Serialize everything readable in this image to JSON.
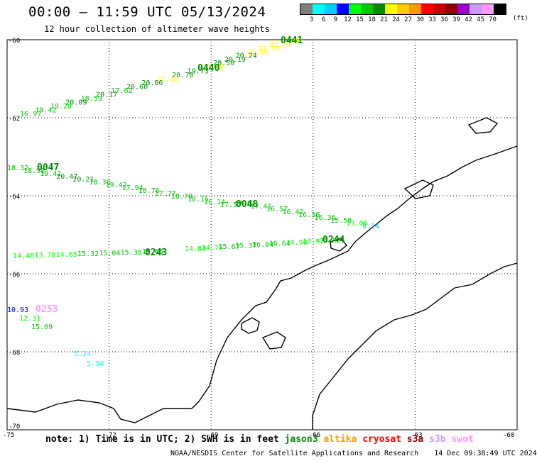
{
  "header": {
    "title": "00:00 – 11:59 UTC 05/13/2024",
    "subtitle": "12 hour collection of altimeter wave heights"
  },
  "legend": {
    "colors": [
      "#808080",
      "#00ffff",
      "#00d0ff",
      "#0000ff",
      "#00ff00",
      "#00c800",
      "#008c00",
      "#ffff00",
      "#ffcc00",
      "#ff9900",
      "#ff0000",
      "#c80000",
      "#8c0000",
      "#9900cc",
      "#cc99ff",
      "#ff99ff",
      "#000000"
    ],
    "labels": [
      "3",
      "6",
      "9",
      "12",
      "15",
      "18",
      "21",
      "24",
      "27",
      "30",
      "33",
      "36",
      "39",
      "42",
      "45",
      "70"
    ],
    "unit": "(ft)"
  },
  "axes": {
    "y_ticks": [
      "-60",
      "-62",
      "-64",
      "-66",
      "-68",
      "-70"
    ],
    "x_ticks": [
      "-75",
      "-72",
      "-69",
      "-66",
      "-63",
      "-60"
    ]
  },
  "tracks": [
    {
      "id": "0441",
      "color": "#008c00",
      "values": [
        {
          "v": "21.90",
          "c": "#ffff00"
        },
        {
          "v": "21.79",
          "c": "#ffff00"
        },
        {
          "v": "21.53",
          "c": "#ffff00"
        },
        {
          "v": "22.06",
          "c": "#ffff00"
        },
        {
          "v": "20.24",
          "c": "#008c00"
        },
        {
          "v": "20.19",
          "c": "#008c00"
        },
        {
          "v": "20.50",
          "c": "#008c00"
        }
      ]
    },
    {
      "id": "0440",
      "color": "#008c00",
      "values": [
        {
          "v": "21.09",
          "c": "#ffff00"
        },
        {
          "v": "19.73",
          "c": "#008c00"
        },
        {
          "v": "20.78",
          "c": "#008c00"
        },
        {
          "v": "21.38",
          "c": "#ffff00"
        },
        {
          "v": "20.86",
          "c": "#008c00"
        },
        {
          "v": "20.60",
          "c": "#008c00"
        },
        {
          "v": "17.62",
          "c": "#00c800"
        },
        {
          "v": "20.17",
          "c": "#008c00"
        },
        {
          "v": "18.59",
          "c": "#00c800"
        },
        {
          "v": "20.09",
          "c": "#008c00"
        },
        {
          "v": "19.20",
          "c": "#00c800"
        },
        {
          "v": "19.42",
          "c": "#00c800"
        },
        {
          "v": "16.97",
          "c": "#00c800"
        }
      ]
    },
    {
      "id": "0047",
      "color": "#008c00",
      "values": [
        {
          "v": "18.32",
          "c": "#00c800"
        },
        {
          "v": "18.98",
          "c": "#00c800"
        },
        {
          "v": "19.42",
          "c": "#00c800"
        },
        {
          "v": "20.47",
          "c": "#008c00"
        },
        {
          "v": "20.21",
          "c": "#008c00"
        },
        {
          "v": "18.38",
          "c": "#00c800"
        },
        {
          "v": "19.42",
          "c": "#00c800"
        },
        {
          "v": "17.94",
          "c": "#00c800"
        },
        {
          "v": "18.76",
          "c": "#00c800"
        },
        {
          "v": "17.77",
          "c": "#00c800"
        },
        {
          "v": "18.70",
          "c": "#00c800"
        },
        {
          "v": "18.15",
          "c": "#00c800"
        },
        {
          "v": "16.14",
          "c": "#00c800"
        },
        {
          "v": "17.57",
          "c": "#00c800"
        }
      ]
    },
    {
      "id": "0048",
      "color": "#008c00",
      "values": [
        {
          "v": "17.67",
          "c": "#00c800"
        },
        {
          "v": "17.41",
          "c": "#00c800"
        },
        {
          "v": "16.57",
          "c": "#00c800"
        },
        {
          "v": "16.42",
          "c": "#00c800"
        },
        {
          "v": "16.36",
          "c": "#00c800"
        },
        {
          "v": "16.36",
          "c": "#00c800"
        },
        {
          "v": "15.58",
          "c": "#00c800"
        },
        {
          "v": "13.06",
          "c": "#00ff00"
        },
        {
          "v": "8.14",
          "c": "#00d0ff"
        }
      ]
    },
    {
      "id": "0244",
      "color": "#008c00",
      "values": [
        {
          "v": "13.93",
          "c": "#00ff00"
        },
        {
          "v": "13.97",
          "c": "#00ff00"
        },
        {
          "v": "14.98",
          "c": "#00ff00"
        },
        {
          "v": "16.64",
          "c": "#00c800"
        },
        {
          "v": "16.04",
          "c": "#00c800"
        },
        {
          "v": "15.37",
          "c": "#00c800"
        },
        {
          "v": "15.67",
          "c": "#00c800"
        },
        {
          "v": "14.76",
          "c": "#00ff00"
        },
        {
          "v": "14.84",
          "c": "#00ff00"
        }
      ]
    },
    {
      "id": "0243",
      "color": "#008c00",
      "values": [
        {
          "v": "15.65",
          "c": "#00c800"
        },
        {
          "v": "15.38",
          "c": "#00c800"
        },
        {
          "v": "15.04",
          "c": "#00c800"
        },
        {
          "v": "15.32",
          "c": "#00c800"
        },
        {
          "v": "14.65",
          "c": "#00ff00"
        },
        {
          "v": "13.78",
          "c": "#00ff00"
        },
        {
          "v": "14.46",
          "c": "#00ff00"
        }
      ]
    },
    {
      "id": "0253",
      "color": "#ff99ff",
      "values": [
        {
          "v": "10.93",
          "c": "#0000ff"
        },
        {
          "v": "12.31",
          "c": "#00ff00"
        },
        {
          "v": "15.09",
          "c": "#00c800"
        }
      ]
    },
    {
      "id": "",
      "color": "#00ffff",
      "values": [
        {
          "v": "5.24",
          "c": "#00ffff"
        },
        {
          "v": "5.34",
          "c": "#00ffff"
        }
      ]
    }
  ],
  "note": {
    "prefix": "note: 1) Time is in UTC; 2) SWH is in feet",
    "missions": [
      {
        "name": "jason3",
        "color": "#008c00"
      },
      {
        "name": "altika",
        "color": "#ff9900"
      },
      {
        "name": "cryosat",
        "color": "#ff0000"
      },
      {
        "name": "s3a",
        "color": "#8c0000"
      },
      {
        "name": "s3b",
        "color": "#cc99ff"
      },
      {
        "name": "swot",
        "color": "#ff99ff"
      }
    ]
  },
  "footer": {
    "credit": "NOAA/NESDIS Center for Satellite Applications and Research",
    "timestamp": "14 Dec 09:38:49 UTC 2024"
  }
}
